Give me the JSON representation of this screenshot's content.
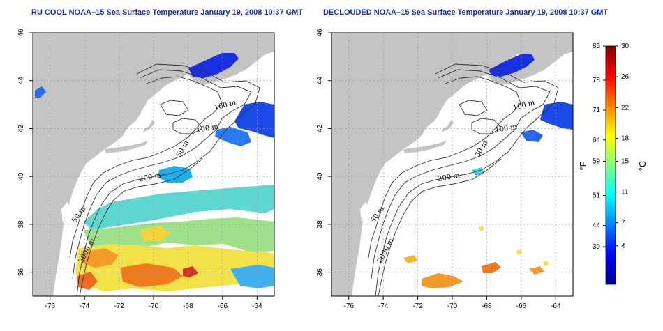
{
  "titles": {
    "left": "RU COOL NOAA–15 Sea Surface Temperature January 19, 2008 10:37 GMT",
    "right": "DECLOUDED NOAA–15 Sea Surface Temperature January 19, 2008 10:37 GMT"
  },
  "map": {
    "lon_range": [
      -77,
      -63
    ],
    "lat_range": [
      35,
      46
    ],
    "x_ticks": [
      -76,
      -74,
      -72,
      -70,
      -68,
      -66,
      -64
    ],
    "x_tick_labels": [
      "-76",
      "-74",
      "-72",
      "-70",
      "-68",
      "-66",
      "-64"
    ],
    "y_ticks": [
      36,
      38,
      40,
      42,
      44,
      46
    ],
    "y_tick_labels": [
      "36",
      "38",
      "40",
      "42",
      "44",
      "46"
    ],
    "grid": "dotted",
    "land_color": "#c4c4c4",
    "contour_labels": [
      "100 m",
      "100 m",
      "50 m",
      "200 m",
      "50 m",
      "2000 m"
    ]
  },
  "colorbar": {
    "unit_left": "°F",
    "unit_right": "°C",
    "f_labels": [
      "86",
      "78",
      "71",
      "64",
      "59",
      "51",
      "44",
      "39"
    ],
    "c_labels": [
      "30",
      "26",
      "22",
      "18",
      "15",
      "11",
      "7",
      "4"
    ],
    "colors": [
      "#00008f",
      "#0000ff",
      "#0080ff",
      "#00ffff",
      "#80ff80",
      "#ffff00",
      "#ff8000",
      "#ff0000",
      "#800000"
    ]
  }
}
